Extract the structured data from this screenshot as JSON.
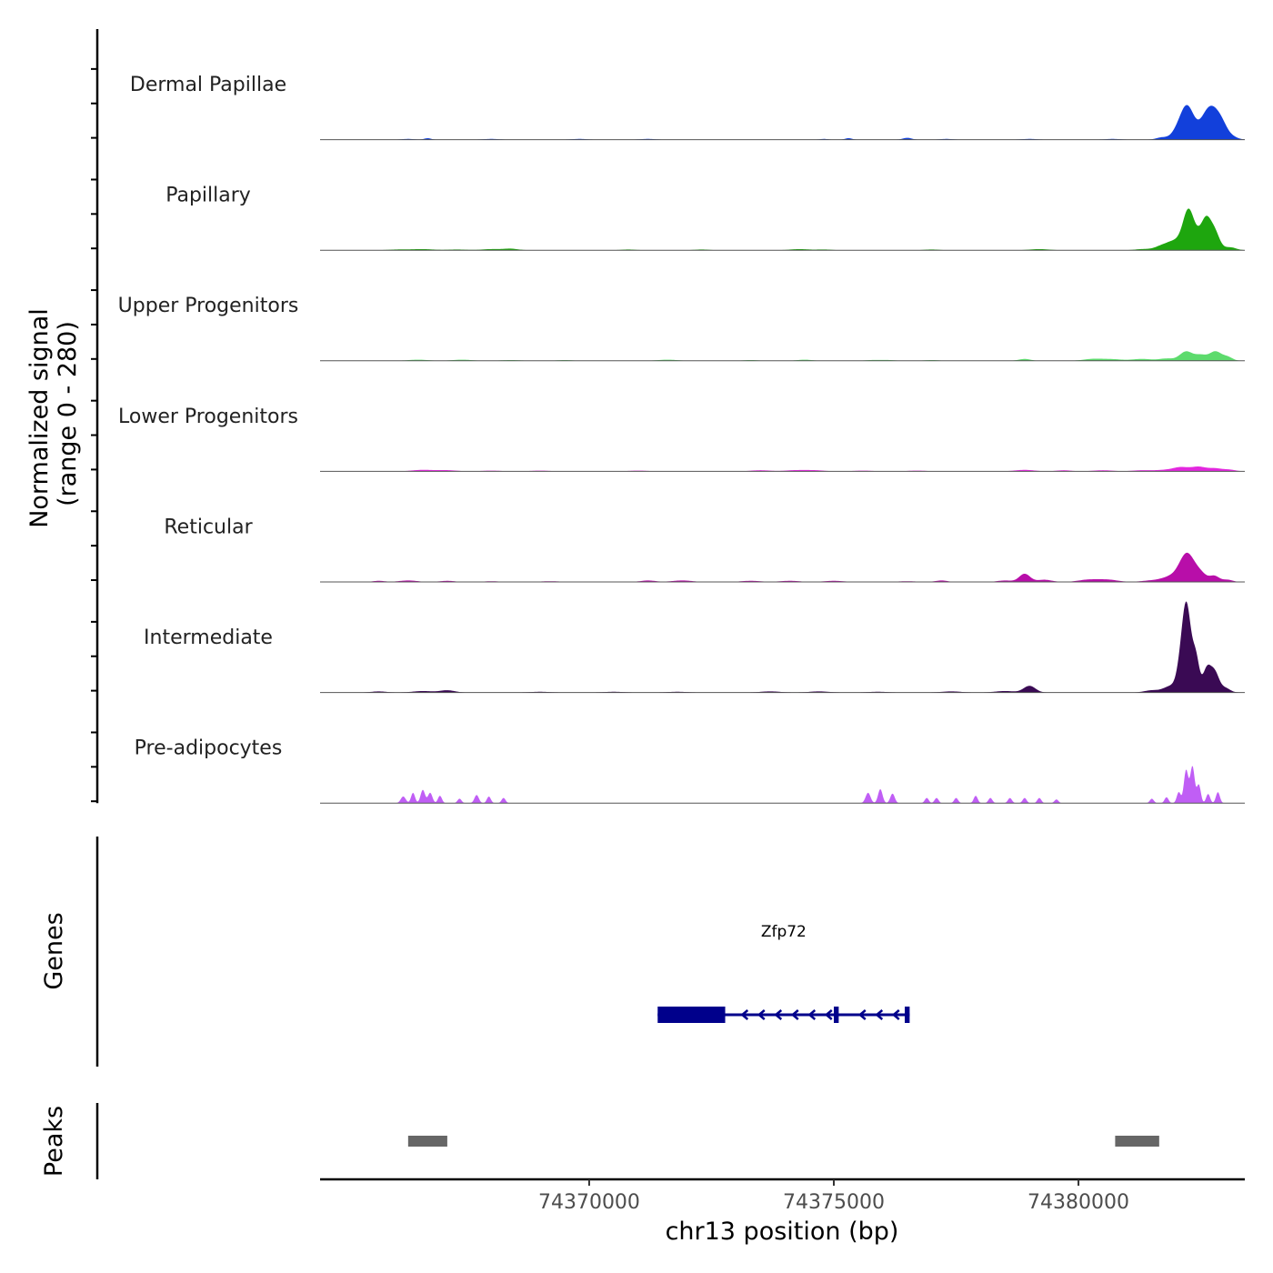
{
  "chart_data": {
    "type": "area",
    "title": "",
    "ylabel_line1": "Normalized signal",
    "ylabel_line2": "(range 0 - 280)",
    "ylim": [
      0,
      280
    ],
    "xlabel": "chr13 position (bp)",
    "xlim": [
      74364500,
      74383400
    ],
    "xticks": [
      {
        "value": 74370000,
        "label": "74370000"
      },
      {
        "value": 74375000,
        "label": "74375000"
      },
      {
        "value": 74380000,
        "label": "74380000"
      }
    ],
    "series": [
      {
        "name": "Dermal Papillae",
        "color": "#1240db",
        "peaks": [
          [
            74366700,
            4,
            70
          ],
          [
            74366300,
            2,
            120
          ],
          [
            74368000,
            2,
            150
          ],
          [
            74369800,
            2,
            150
          ],
          [
            74371200,
            2,
            150
          ],
          [
            74374800,
            2,
            80
          ],
          [
            74375300,
            4,
            70
          ],
          [
            74376500,
            5,
            90
          ],
          [
            74377300,
            2,
            120
          ],
          [
            74379000,
            2,
            150
          ],
          [
            74380700,
            2,
            150
          ],
          [
            74381700,
            6,
            110
          ],
          [
            74382000,
            15,
            120
          ],
          [
            74382220,
            90,
            140
          ],
          [
            74382600,
            45,
            140
          ],
          [
            74382770,
            60,
            150
          ],
          [
            74382950,
            25,
            120
          ],
          [
            74383180,
            5,
            100
          ]
        ]
      },
      {
        "name": "Papillary",
        "color": "#1ea60e",
        "peaks": [
          [
            74366100,
            2,
            200
          ],
          [
            74366600,
            3,
            220
          ],
          [
            74367300,
            2,
            200
          ],
          [
            74368000,
            3,
            200
          ],
          [
            74368400,
            4,
            150
          ],
          [
            74370800,
            2,
            150
          ],
          [
            74372300,
            2,
            150
          ],
          [
            74374300,
            3,
            200
          ],
          [
            74374800,
            2,
            150
          ],
          [
            74377000,
            2,
            150
          ],
          [
            74379200,
            3,
            200
          ],
          [
            74381300,
            3,
            150
          ],
          [
            74381700,
            10,
            150
          ],
          [
            74382000,
            25,
            170
          ],
          [
            74382250,
            100,
            110
          ],
          [
            74382500,
            40,
            120
          ],
          [
            74382620,
            55,
            90
          ],
          [
            74382780,
            50,
            100
          ],
          [
            74383100,
            8,
            120
          ]
        ]
      },
      {
        "name": "Upper Progenitors",
        "color": "#5ddb6d",
        "peaks": [
          [
            74366500,
            3,
            200
          ],
          [
            74367400,
            3,
            200
          ],
          [
            74368400,
            2,
            200
          ],
          [
            74369500,
            2,
            150
          ],
          [
            74371600,
            3,
            200
          ],
          [
            74373300,
            2,
            150
          ],
          [
            74374400,
            3,
            150
          ],
          [
            74375800,
            2,
            150
          ],
          [
            74376100,
            2,
            150
          ],
          [
            74377000,
            2,
            150
          ],
          [
            74378900,
            5,
            120
          ],
          [
            74380300,
            5,
            200
          ],
          [
            74380700,
            4,
            200
          ],
          [
            74381300,
            5,
            200
          ],
          [
            74381800,
            6,
            150
          ],
          [
            74382200,
            25,
            130
          ],
          [
            74382500,
            15,
            120
          ],
          [
            74382800,
            25,
            120
          ],
          [
            74383050,
            10,
            100
          ]
        ]
      },
      {
        "name": "Lower Progenitors",
        "color": "#e327de",
        "peaks": [
          [
            74366600,
            4,
            220
          ],
          [
            74367100,
            3,
            200
          ],
          [
            74368000,
            2,
            200
          ],
          [
            74369000,
            2,
            200
          ],
          [
            74371000,
            2,
            200
          ],
          [
            74373500,
            3,
            200
          ],
          [
            74374200,
            3,
            200
          ],
          [
            74374600,
            3,
            200
          ],
          [
            74375600,
            2,
            200
          ],
          [
            74376700,
            2,
            200
          ],
          [
            74378900,
            4,
            200
          ],
          [
            74379700,
            3,
            150
          ],
          [
            74380500,
            3,
            200
          ],
          [
            74381300,
            3,
            200
          ],
          [
            74381800,
            4,
            200
          ],
          [
            74382100,
            10,
            150
          ],
          [
            74382450,
            12,
            150
          ],
          [
            74382800,
            8,
            150
          ],
          [
            74383100,
            4,
            120
          ]
        ]
      },
      {
        "name": "Reticular",
        "color": "#b80ea9",
        "peaks": [
          [
            74365700,
            3,
            120
          ],
          [
            74366300,
            4,
            180
          ],
          [
            74367100,
            3,
            150
          ],
          [
            74368000,
            2,
            150
          ],
          [
            74369200,
            2,
            200
          ],
          [
            74371200,
            4,
            150
          ],
          [
            74371900,
            4,
            200
          ],
          [
            74373300,
            3,
            200
          ],
          [
            74374100,
            3,
            200
          ],
          [
            74375000,
            3,
            200
          ],
          [
            74376500,
            2,
            200
          ],
          [
            74377200,
            4,
            120
          ],
          [
            74378500,
            4,
            150
          ],
          [
            74378900,
            22,
            110
          ],
          [
            74379300,
            6,
            150
          ],
          [
            74380200,
            6,
            200
          ],
          [
            74380600,
            6,
            200
          ],
          [
            74381500,
            4,
            200
          ],
          [
            74381900,
            14,
            180
          ],
          [
            74382220,
            75,
            150
          ],
          [
            74382500,
            20,
            120
          ],
          [
            74382780,
            16,
            100
          ],
          [
            74383050,
            6,
            100
          ]
        ]
      },
      {
        "name": "Intermediate",
        "color": "#3a0a54",
        "peaks": [
          [
            74365700,
            3,
            150
          ],
          [
            74366600,
            4,
            200
          ],
          [
            74367100,
            6,
            150
          ],
          [
            74369000,
            2,
            200
          ],
          [
            74370500,
            2,
            200
          ],
          [
            74371800,
            2,
            200
          ],
          [
            74373700,
            3,
            200
          ],
          [
            74374700,
            3,
            200
          ],
          [
            74375900,
            2,
            200
          ],
          [
            74377400,
            3,
            200
          ],
          [
            74378500,
            4,
            200
          ],
          [
            74379000,
            18,
            120
          ],
          [
            74381500,
            6,
            150
          ],
          [
            74381900,
            18,
            150
          ],
          [
            74382080,
            45,
            80
          ],
          [
            74382210,
            230,
            90
          ],
          [
            74382400,
            90,
            70
          ],
          [
            74382620,
            60,
            80
          ],
          [
            74382780,
            55,
            90
          ],
          [
            74383000,
            12,
            100
          ]
        ]
      },
      {
        "name": "Pre-adipocytes",
        "color": "#c05ef5",
        "peaks": [
          [
            74366200,
            18,
            50
          ],
          [
            74366400,
            28,
            40
          ],
          [
            74366600,
            36,
            45
          ],
          [
            74366750,
            28,
            45
          ],
          [
            74366950,
            20,
            40
          ],
          [
            74367350,
            12,
            40
          ],
          [
            74367700,
            22,
            45
          ],
          [
            74367950,
            18,
            40
          ],
          [
            74368250,
            14,
            40
          ],
          [
            74375700,
            28,
            50
          ],
          [
            74375950,
            38,
            45
          ],
          [
            74376200,
            26,
            45
          ],
          [
            74376900,
            14,
            40
          ],
          [
            74377100,
            14,
            40
          ],
          [
            74377500,
            14,
            40
          ],
          [
            74377900,
            20,
            40
          ],
          [
            74378200,
            14,
            40
          ],
          [
            74378600,
            14,
            40
          ],
          [
            74378900,
            14,
            40
          ],
          [
            74379200,
            14,
            40
          ],
          [
            74379550,
            10,
            40
          ],
          [
            74381500,
            12,
            40
          ],
          [
            74381800,
            16,
            40
          ],
          [
            74382050,
            30,
            40
          ],
          [
            74382200,
            90,
            45
          ],
          [
            74382330,
            100,
            45
          ],
          [
            74382460,
            50,
            40
          ],
          [
            74382650,
            25,
            40
          ],
          [
            74382850,
            30,
            40
          ]
        ]
      }
    ],
    "genes": [
      {
        "name": "Zfp72",
        "strand": "-",
        "start": 74371400,
        "end": 74376550,
        "exons": [
          [
            74371400,
            74372780
          ],
          [
            74375000,
            74375100
          ],
          [
            74376450,
            74376550
          ]
        ]
      }
    ],
    "peaks_track": [
      [
        74366300,
        74367100
      ],
      [
        74380750,
        74381650
      ]
    ],
    "panel_labels": {
      "genes": "Genes",
      "peaks": "Peaks"
    },
    "colors": {
      "gene": "#00008b",
      "peak": "#666666",
      "baseline": "#555555",
      "axis": "#000000"
    }
  }
}
